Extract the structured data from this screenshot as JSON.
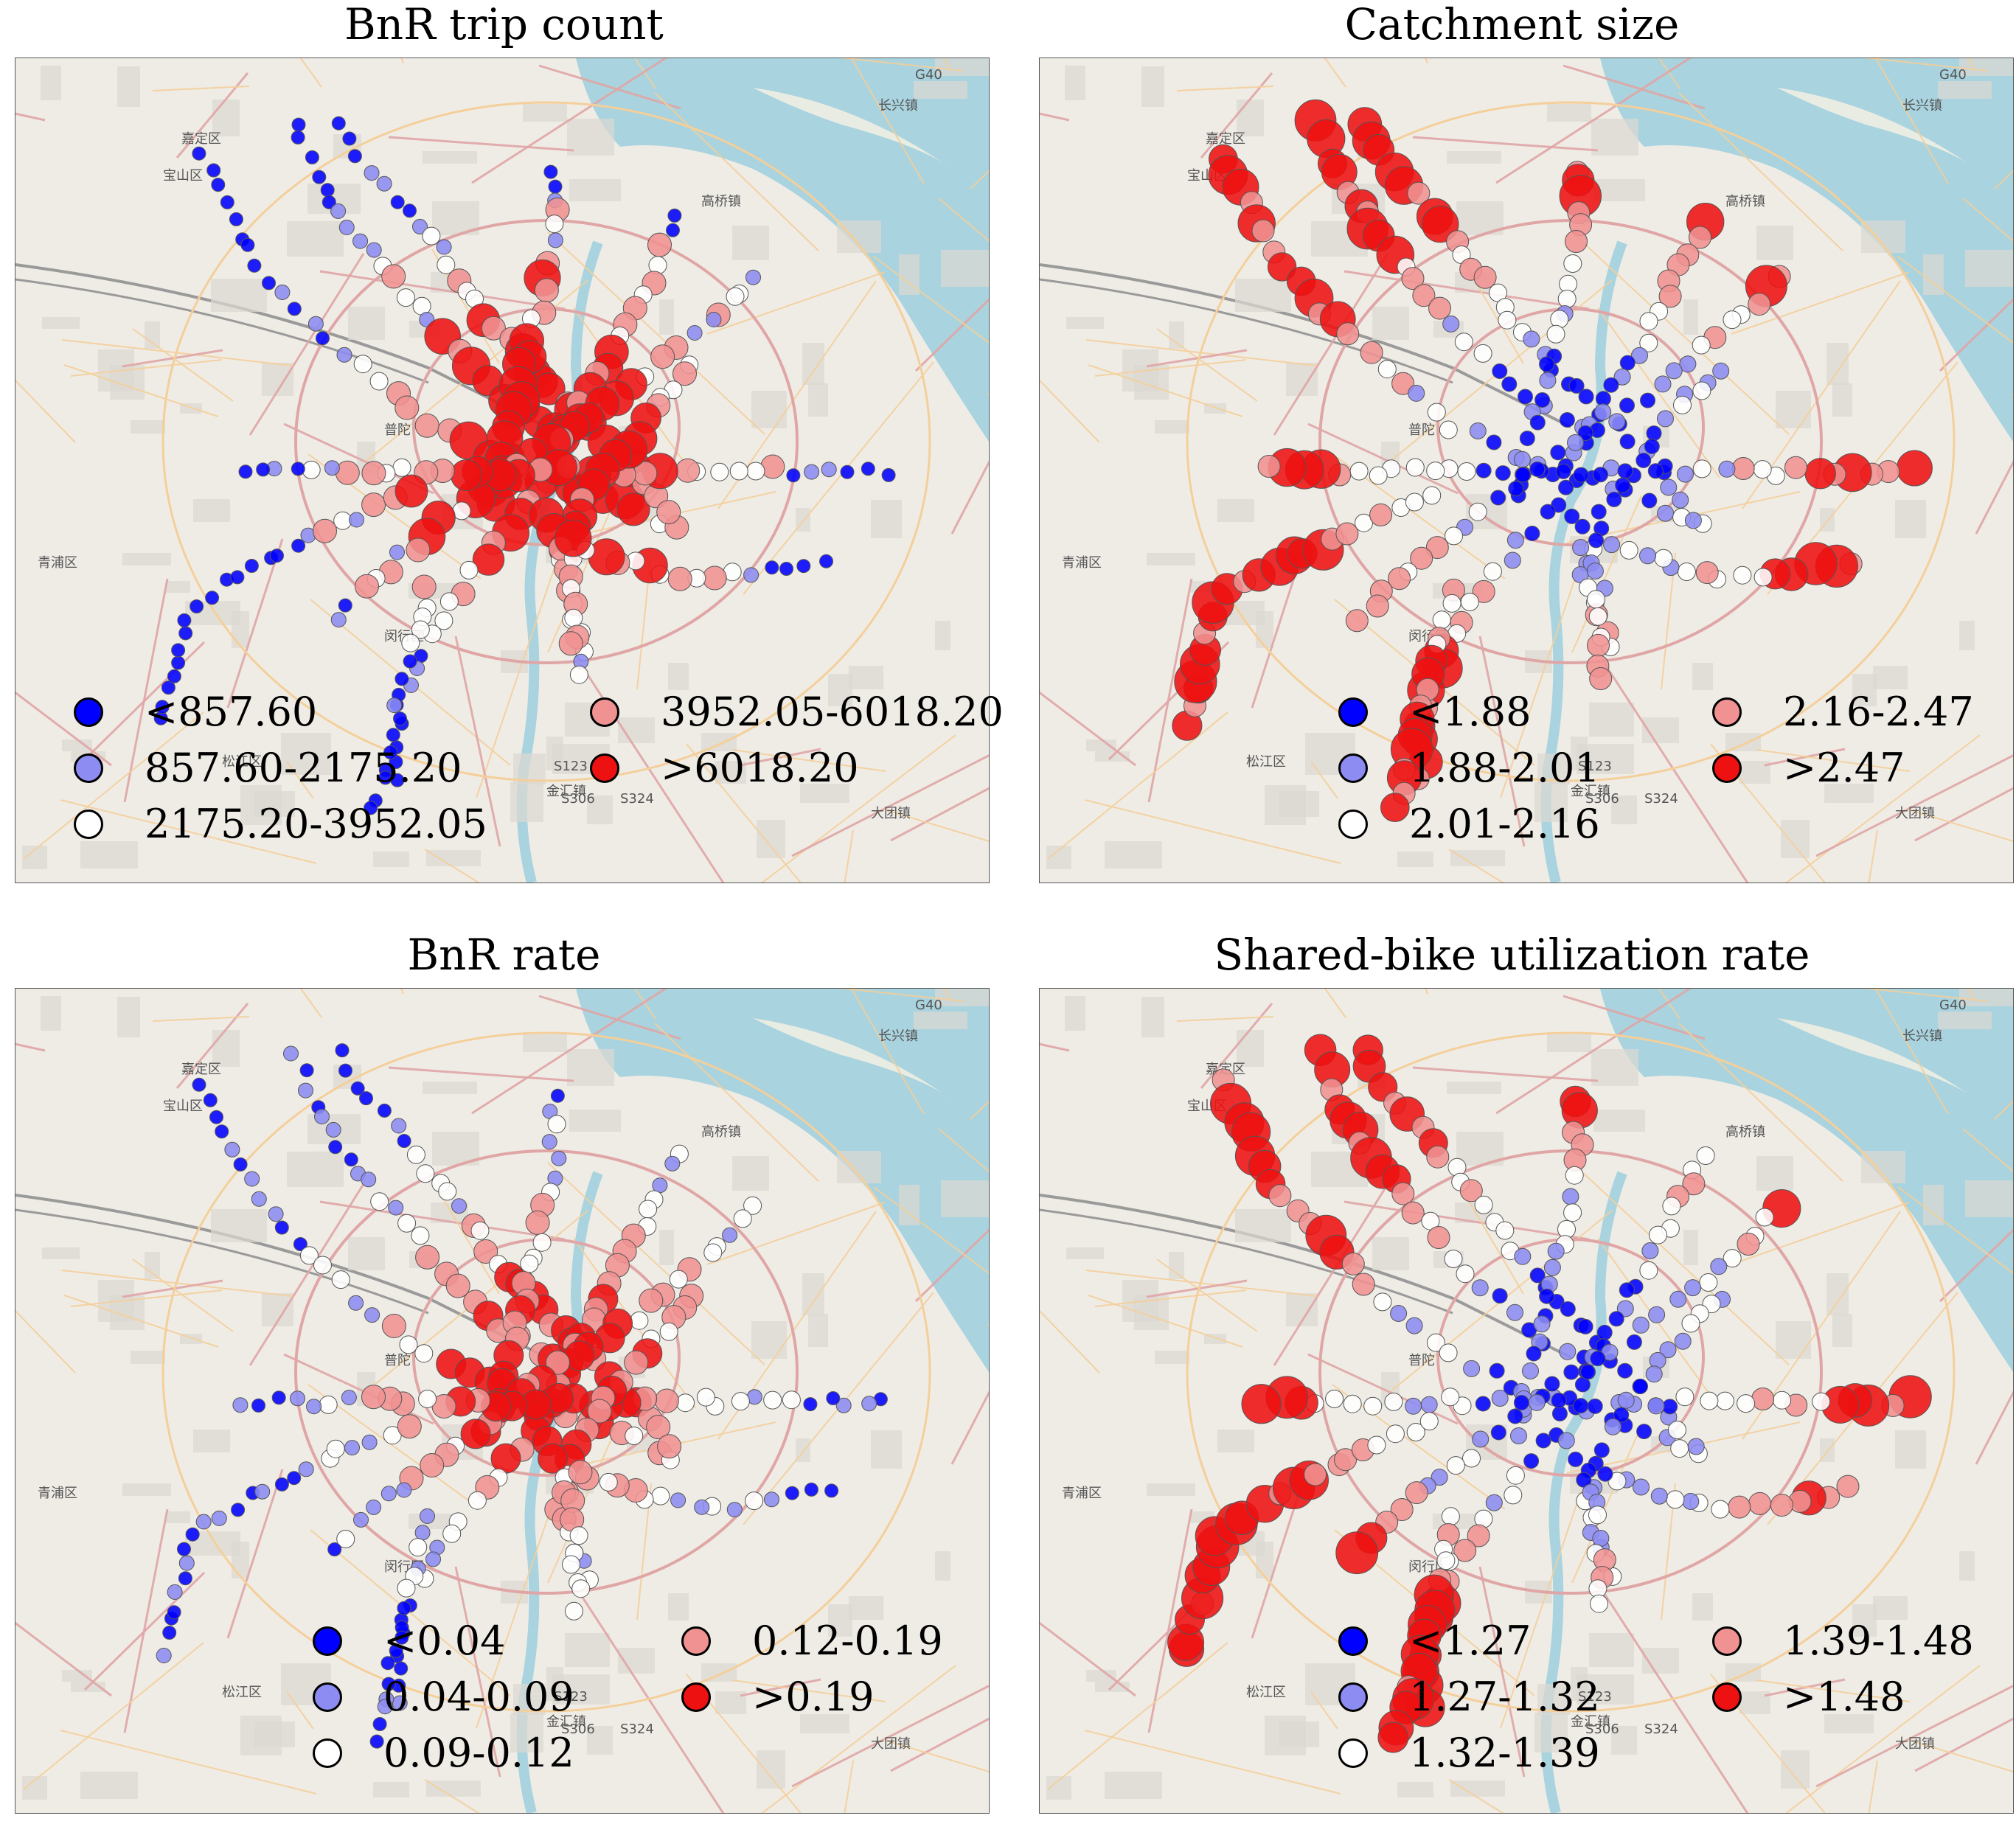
{
  "colors": {
    "c1": "#0000ff",
    "c2": "#8c8cf2",
    "c3": "#ffffff",
    "c4": "#f09292",
    "c5": "#ee1111",
    "water": "#a9d3df",
    "land": "#efece6",
    "road_major": "#e0a6a6",
    "road_minor": "#f4cf9a"
  },
  "map_labels": [
    "宝山区",
    "嘉定区",
    "普陀",
    "青浦区",
    "闵行区",
    "松江区",
    "金汇镇",
    "大团镇",
    "高桥镇",
    "长兴镇",
    "G40",
    "S123",
    "S306",
    "S324"
  ],
  "chart_data": [
    {
      "type": "map",
      "title": "BnR trip count",
      "legend": [
        {
          "label": "<857.60",
          "class": 1
        },
        {
          "label": "857.60-2175.20",
          "class": 2
        },
        {
          "label": "2175.20-3952.05",
          "class": 3
        },
        {
          "label": "3952.05-6018.20",
          "class": 4
        },
        {
          "label": ">6018.20",
          "class": 5
        }
      ],
      "legend_columns": 2
    },
    {
      "type": "map",
      "title": "Catchment size",
      "legend": [
        {
          "label": "<1.88",
          "class": 1
        },
        {
          "label": "1.88-2.01",
          "class": 2
        },
        {
          "label": "2.01-2.16",
          "class": 3
        },
        {
          "label": "2.16-2.47",
          "class": 4
        },
        {
          "label": ">2.47",
          "class": 5
        }
      ],
      "legend_columns": 2
    },
    {
      "type": "map",
      "title": "BnR rate",
      "legend": [
        {
          "label": "<0.04",
          "class": 1
        },
        {
          "label": "0.04-0.09",
          "class": 2
        },
        {
          "label": "0.09-0.12",
          "class": 3
        },
        {
          "label": "0.12-0.19",
          "class": 4
        },
        {
          "label": ">0.19",
          "class": 5
        }
      ],
      "legend_columns": 2
    },
    {
      "type": "map",
      "title": "Shared-bike utilization rate",
      "legend": [
        {
          "label": "<1.27",
          "class": 1
        },
        {
          "label": "1.27-1.32",
          "class": 2
        },
        {
          "label": "1.32-1.39",
          "class": 3
        },
        {
          "label": "1.39-1.48",
          "class": 4
        },
        {
          "label": ">1.48",
          "class": 5
        }
      ],
      "legend_columns": 2
    }
  ]
}
